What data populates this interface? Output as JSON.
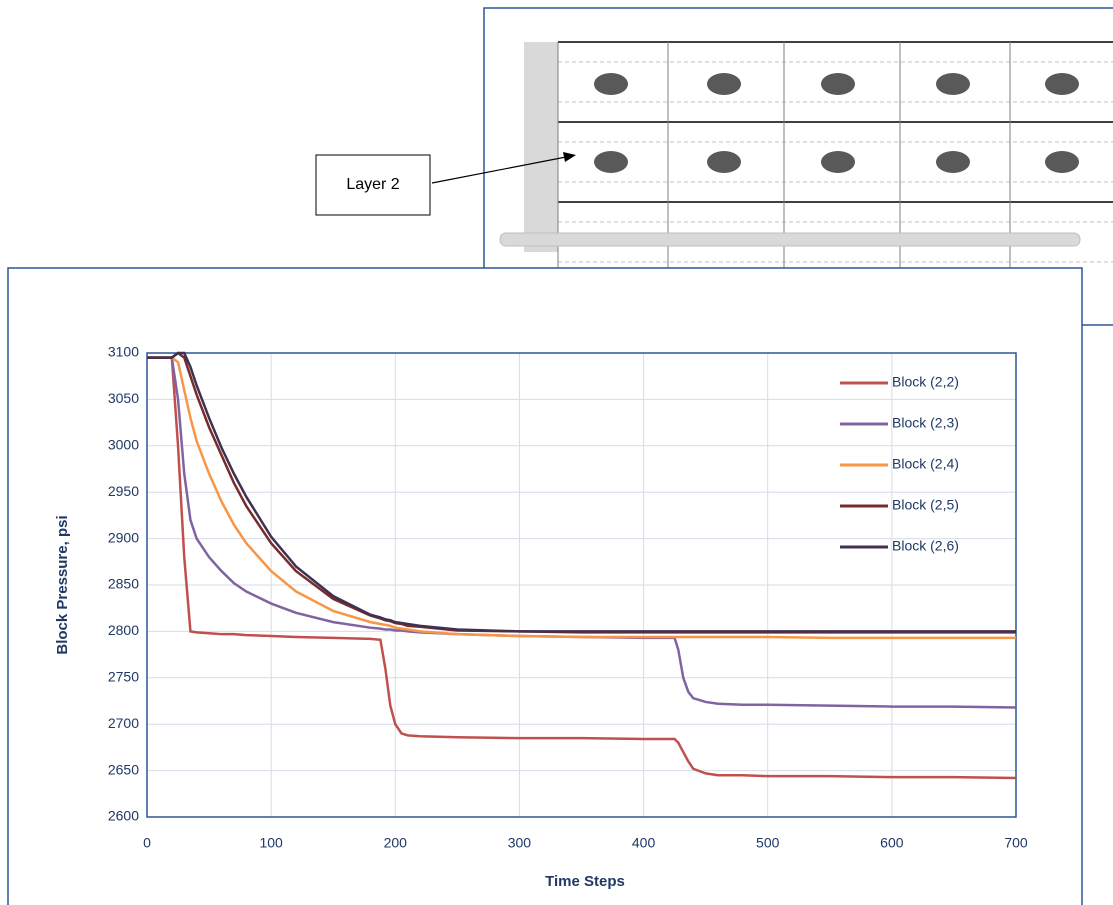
{
  "diagram": {
    "label": "Layer 2"
  },
  "chart_data": {
    "type": "line",
    "x_label": "Time Steps",
    "y_label": "Block Pressure, psi",
    "x": [
      0,
      10,
      20,
      25,
      30,
      35,
      40,
      50,
      60,
      70,
      80,
      100,
      120,
      150,
      180,
      188,
      192,
      196,
      200,
      205,
      210,
      220,
      250,
      300,
      350,
      400,
      425,
      428,
      432,
      436,
      440,
      450,
      460,
      480,
      500,
      550,
      600,
      650,
      700
    ],
    "series": [
      {
        "name": "Block (2,2)",
        "color": "#c0504d",
        "values": [
          3095,
          3095,
          3095,
          3000,
          2880,
          2800,
          2799,
          2798,
          2797,
          2797,
          2796,
          2795,
          2794,
          2793,
          2792,
          2791,
          2760,
          2720,
          2700,
          2690,
          2688,
          2687,
          2686,
          2685,
          2685,
          2684,
          2684,
          2680,
          2670,
          2660,
          2652,
          2647,
          2645,
          2645,
          2644,
          2644,
          2643,
          2643,
          2642
        ]
      },
      {
        "name": "Block (2,3)",
        "color": "#8064a2",
        "values": [
          3095,
          3095,
          3095,
          3050,
          2970,
          2920,
          2900,
          2880,
          2865,
          2852,
          2843,
          2830,
          2820,
          2810,
          2804,
          2803,
          2802,
          2802,
          2801,
          2801,
          2800,
          2799,
          2797,
          2795,
          2794,
          2793,
          2793,
          2780,
          2750,
          2735,
          2728,
          2724,
          2722,
          2721,
          2721,
          2720,
          2719,
          2719,
          2718
        ]
      },
      {
        "name": "Block (2,4)",
        "color": "#f79646",
        "values": [
          3095,
          3095,
          3095,
          3090,
          3060,
          3030,
          3005,
          2970,
          2940,
          2915,
          2895,
          2865,
          2843,
          2822,
          2810,
          2808,
          2807,
          2806,
          2804,
          2803,
          2802,
          2800,
          2797,
          2795,
          2794,
          2794,
          2794,
          2794,
          2794,
          2794,
          2794,
          2794,
          2794,
          2794,
          2794,
          2793,
          2793,
          2793,
          2793
        ]
      },
      {
        "name": "Block (2,5)",
        "color": "#772c2a",
        "values": [
          3095,
          3095,
          3095,
          3100,
          3095,
          3075,
          3055,
          3020,
          2990,
          2960,
          2935,
          2895,
          2865,
          2835,
          2817,
          2814,
          2812,
          2811,
          2809,
          2808,
          2806,
          2805,
          2801,
          2800,
          2799,
          2799,
          2799,
          2799,
          2799,
          2799,
          2799,
          2799,
          2799,
          2799,
          2799,
          2799,
          2799,
          2799,
          2799
        ]
      },
      {
        "name": "Block (2,6)",
        "color": "#403152",
        "values": [
          3095,
          3095,
          3095,
          3100,
          3100,
          3085,
          3065,
          3030,
          2998,
          2970,
          2945,
          2902,
          2870,
          2838,
          2818,
          2815,
          2813,
          2812,
          2810,
          2809,
          2808,
          2806,
          2802,
          2800,
          2800,
          2800,
          2800,
          2800,
          2800,
          2800,
          2800,
          2800,
          2800,
          2800,
          2800,
          2800,
          2800,
          2800,
          2800
        ]
      }
    ],
    "xlim": [
      0,
      700
    ],
    "xticks": [
      0,
      100,
      200,
      300,
      400,
      500,
      600,
      700
    ],
    "ylim": [
      2600,
      3100
    ],
    "yticks": [
      2600,
      2650,
      2700,
      2750,
      2800,
      2850,
      2900,
      2950,
      3000,
      3050,
      3100
    ],
    "grid": true,
    "legend": "top-right"
  }
}
